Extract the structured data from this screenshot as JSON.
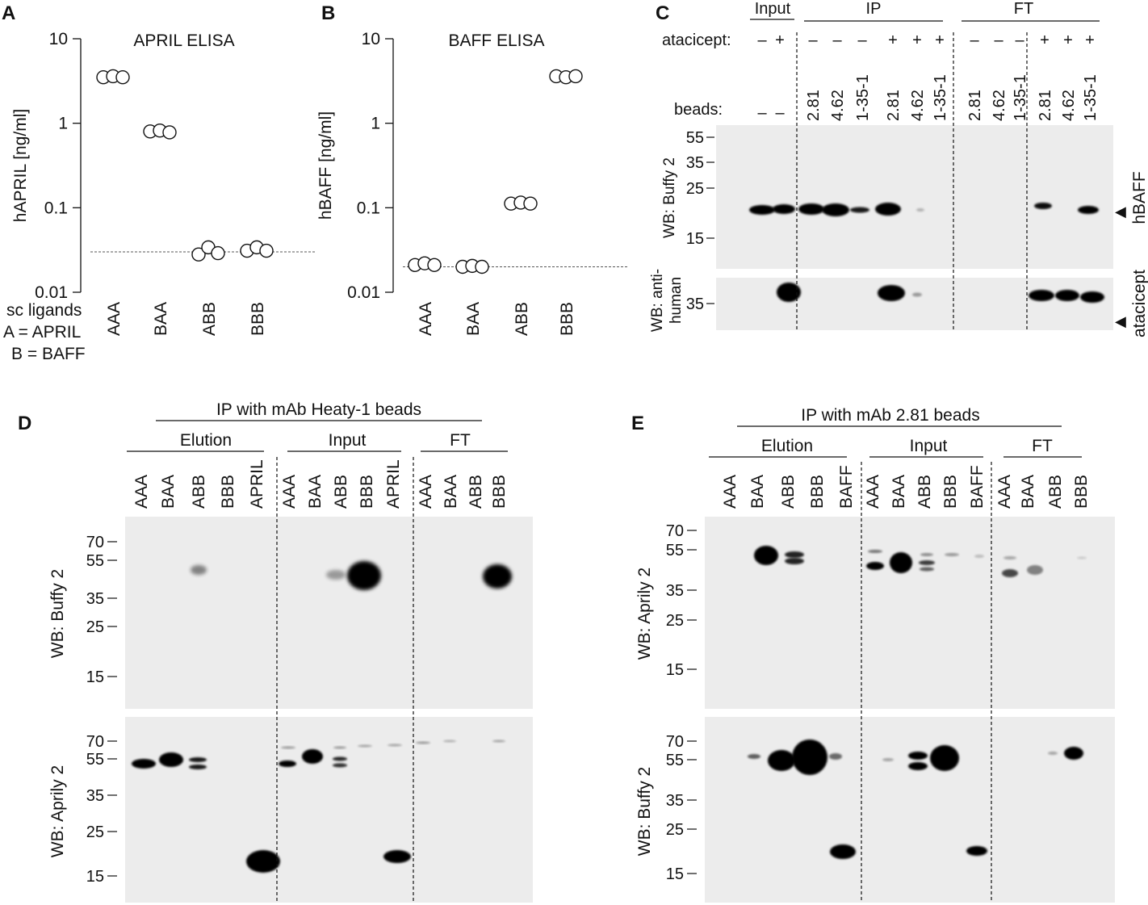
{
  "panels": {
    "A": {
      "label": "A",
      "chart_data": {
        "type": "scatter",
        "title": "APRIL ELISA",
        "ylabel": "hAPRIL [ng/ml]",
        "yscale": "log",
        "ylim": [
          0.01,
          10
        ],
        "yticks": [
          "10",
          "1",
          "0.1",
          "0.01"
        ],
        "categories": [
          "AAA",
          "BAA",
          "ABB",
          "BBB"
        ],
        "points": [
          [
            3.5,
            3.6,
            3.5
          ],
          [
            0.8,
            0.82,
            0.78
          ],
          [
            0.028,
            0.034,
            0.029
          ],
          [
            0.031,
            0.034,
            0.031
          ]
        ],
        "detection_limit": 0.03
      },
      "legend": [
        "sc ligands",
        "A = APRIL",
        "B = BAFF"
      ]
    },
    "B": {
      "label": "B",
      "chart_data": {
        "type": "scatter",
        "title": "BAFF ELISA",
        "ylabel": "hBAFF [ng/ml]",
        "yscale": "log",
        "ylim": [
          0.01,
          10
        ],
        "yticks": [
          "10",
          "1",
          "0.1",
          "0.01"
        ],
        "categories": [
          "AAA",
          "BAA",
          "ABB",
          "BBB"
        ],
        "points": [
          [
            0.021,
            0.022,
            0.021
          ],
          [
            0.02,
            0.0205,
            0.02
          ],
          [
            0.112,
            0.115,
            0.112
          ],
          [
            3.6,
            3.5,
            3.6
          ]
        ],
        "detection_limit": 0.02
      }
    },
    "C": {
      "label": "C",
      "groups": [
        "Input",
        "IP",
        "FT"
      ],
      "atacicept_label": "atacicept:",
      "atacicept": [
        "–",
        "+",
        "–",
        "–",
        "–",
        "+",
        "+",
        "+",
        "–",
        "–",
        "–",
        "+",
        "+",
        "+"
      ],
      "beads_label": "beads:",
      "beads": [
        "–",
        "–",
        "2.81",
        "4.62",
        "1-35-1",
        "2.81",
        "4.62",
        "1-35-1",
        "2.81",
        "4.62",
        "1-35-1",
        "2.81",
        "4.62",
        "1-35-1"
      ],
      "top_blot": {
        "wb": "WB: Buffy 2",
        "markers": [
          "55",
          "35",
          "25",
          "15"
        ],
        "band_label": "hBAFF"
      },
      "bottom_blot": {
        "wb_line1": "WB: anti-",
        "wb_line2": "human",
        "markers": [
          "35"
        ],
        "band_label": "atacicept"
      },
      "arrow_glyph": "◀"
    },
    "D": {
      "label": "D",
      "header": "IP with mAb Heaty-1 beads",
      "groups": [
        "Elution",
        "Input",
        "FT"
      ],
      "lanes": [
        "AAA",
        "BAA",
        "ABB",
        "BBB",
        "APRIL",
        "AAA",
        "BAA",
        "ABB",
        "BBB",
        "APRIL",
        "AAA",
        "BAA",
        "ABB",
        "BBB"
      ],
      "top_blot": {
        "wb": "WB: Buffy 2",
        "markers": [
          "70",
          "55",
          "35",
          "25",
          "15"
        ]
      },
      "bottom_blot": {
        "wb": "WB: Aprily 2",
        "markers": [
          "70",
          "55",
          "35",
          "25",
          "15"
        ]
      }
    },
    "E": {
      "label": "E",
      "header": "IP with mAb 2.81 beads",
      "groups": [
        "Elution",
        "Input",
        "FT"
      ],
      "lanes": [
        "AAA",
        "BAA",
        "ABB",
        "BBB",
        "BAFF",
        "AAA",
        "BAA",
        "ABB",
        "BBB",
        "BAFF",
        "AAA",
        "BAA",
        "ABB",
        "BBB"
      ],
      "top_blot": {
        "wb": "WB: Aprily 2",
        "markers": [
          "70",
          "55",
          "35",
          "25",
          "15"
        ]
      },
      "bottom_blot": {
        "wb": "WB: Buffy 2",
        "markers": [
          "70",
          "55",
          "35",
          "25",
          "15"
        ]
      }
    }
  }
}
